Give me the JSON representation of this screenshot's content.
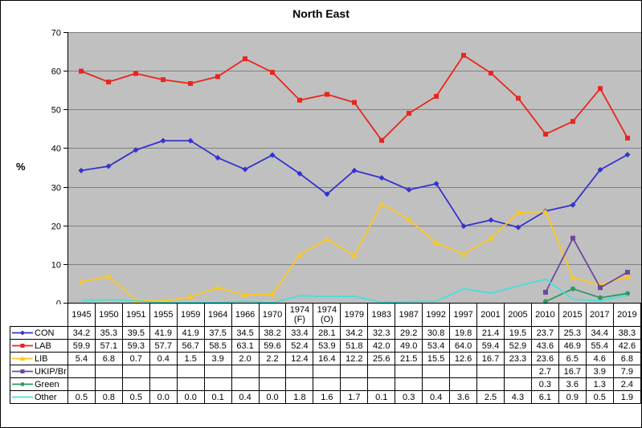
{
  "chart_data": {
    "type": "line",
    "title": "North East",
    "ylabel": "%",
    "ylim": [
      0,
      70
    ],
    "yticks": [
      0,
      10,
      20,
      30,
      40,
      50,
      60,
      70
    ],
    "grid": true,
    "legend_position": "table-left",
    "plot_bg_color": "#C0C0C0",
    "gridline_color": "#808080",
    "categories": [
      "1945",
      "1950",
      "1951",
      "1955",
      "1959",
      "1964",
      "1966",
      "1970",
      "1974 (F)",
      "1974 (O)",
      "1979",
      "1983",
      "1987",
      "1992",
      "1997",
      "2001",
      "2005",
      "2010",
      "2015",
      "2017",
      "2019"
    ],
    "series": [
      {
        "name": "CON",
        "color": "#3333CC",
        "marker": "diamond",
        "values": [
          34.2,
          35.3,
          39.5,
          41.9,
          41.9,
          37.5,
          34.5,
          38.2,
          33.4,
          28.1,
          34.2,
          32.3,
          29.2,
          30.8,
          19.8,
          21.4,
          19.5,
          23.7,
          25.3,
          34.4,
          38.3
        ]
      },
      {
        "name": "LAB",
        "color": "#E8261D",
        "marker": "square",
        "values": [
          59.9,
          57.1,
          59.3,
          57.7,
          56.7,
          58.5,
          63.1,
          59.6,
          52.4,
          53.9,
          51.8,
          42.0,
          49.0,
          53.4,
          64.0,
          59.4,
          52.9,
          43.6,
          46.9,
          55.4,
          42.6
        ]
      },
      {
        "name": "LIB",
        "color": "#FFC81E",
        "marker": "triangle",
        "values": [
          5.4,
          6.8,
          0.7,
          0.4,
          1.5,
          3.9,
          2.0,
          2.2,
          12.4,
          16.4,
          12.2,
          25.6,
          21.5,
          15.5,
          12.6,
          16.7,
          23.3,
          23.6,
          6.5,
          4.6,
          6.8
        ]
      },
      {
        "name": "UKIP/Br",
        "color": "#6A4A9E",
        "marker": "square",
        "values": [
          null,
          null,
          null,
          null,
          null,
          null,
          null,
          null,
          null,
          null,
          null,
          null,
          null,
          null,
          null,
          null,
          null,
          2.7,
          16.7,
          3.9,
          7.9
        ]
      },
      {
        "name": "Green",
        "color": "#2E9966",
        "marker": "circle",
        "values": [
          null,
          null,
          null,
          null,
          null,
          null,
          null,
          null,
          null,
          null,
          null,
          null,
          null,
          null,
          null,
          null,
          null,
          0.3,
          3.6,
          1.3,
          2.4
        ]
      },
      {
        "name": "Other",
        "color": "#45E0D8",
        "marker": "none",
        "values": [
          0.5,
          0.8,
          0.5,
          0.0,
          0.0,
          0.1,
          0.4,
          0.0,
          1.8,
          1.6,
          1.7,
          0.1,
          0.3,
          0.4,
          3.6,
          2.5,
          4.3,
          6.1,
          0.9,
          0.5,
          1.9
        ]
      }
    ]
  }
}
